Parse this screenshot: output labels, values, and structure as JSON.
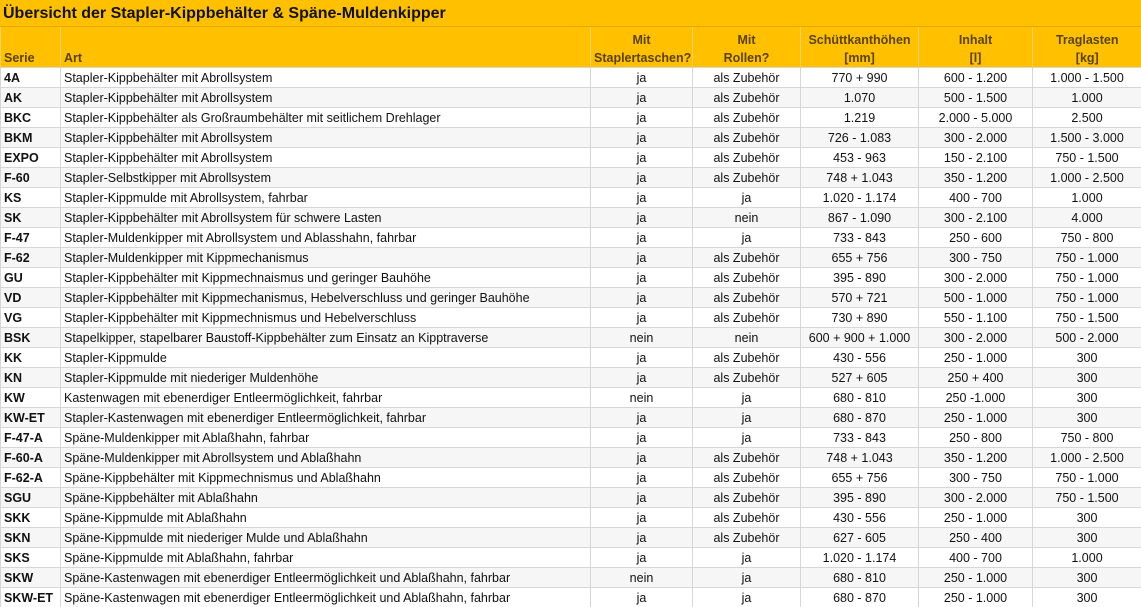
{
  "title": "Übersicht der Stapler-Kippbehälter & Späne-Muldenkipper",
  "table": {
    "header": [
      [
        "Serie"
      ],
      [
        "Art"
      ],
      [
        "Mit",
        "Staplertaschen?"
      ],
      [
        "Mit",
        "Rollen?"
      ],
      [
        "Schüttkanthöhen",
        "[mm]"
      ],
      [
        "Inhalt",
        "[l]"
      ],
      [
        "Traglasten",
        "[kg]"
      ]
    ],
    "rows": [
      [
        "4A",
        "Stapler-Kippbehälter mit Abrollsystem",
        "ja",
        "als Zubehör",
        "770 + 990",
        "600 - 1.200",
        "1.000 - 1.500"
      ],
      [
        "AK",
        "Stapler-Kippbehälter mit Abrollsystem",
        "ja",
        "als Zubehör",
        "1.070",
        "500 - 1.500",
        "1.000"
      ],
      [
        "BKC",
        "Stapler-Kippbehälter als Großraumbehälter mit seitlichem Drehlager",
        "ja",
        "als Zubehör",
        "1.219",
        "2.000 - 5.000",
        "2.500"
      ],
      [
        "BKM",
        "Stapler-Kippbehälter mit Abrollsystem",
        "ja",
        "als Zubehör",
        "726 - 1.083",
        "300 - 2.000",
        "1.500 - 3.000"
      ],
      [
        "EXPO",
        "Stapler-Kippbehälter mit Abrollsystem",
        "ja",
        "als Zubehör",
        "453 - 963",
        "150 - 2.100",
        "750 - 1.500"
      ],
      [
        "F-60",
        "Stapler-Selbstkipper mit Abrollsystem",
        "ja",
        "als Zubehör",
        "748 + 1.043",
        "350 - 1.200",
        "1.000 - 2.500"
      ],
      [
        "KS",
        "Stapler-Kippmulde mit Abrollsystem, fahrbar",
        "ja",
        "ja",
        "1.020 - 1.174",
        "400 - 700",
        "1.000"
      ],
      [
        "SK",
        "Stapler-Kippbehälter mit Abrollsystem für schwere Lasten",
        "ja",
        "nein",
        "867 - 1.090",
        "300 - 2.100",
        "4.000"
      ],
      [
        "F-47",
        "Stapler-Muldenkipper mit Abrollsystem und Ablasshahn, fahrbar",
        "ja",
        "ja",
        "733 - 843",
        "250 - 600",
        "750 - 800"
      ],
      [
        "F-62",
        "Stapler-Muldenkipper mit Kippmechanismus",
        "ja",
        "als Zubehör",
        "655 + 756",
        "300 - 750",
        "750 - 1.000"
      ],
      [
        "GU",
        "Stapler-Kippbehälter mit Kippmechnaismus und geringer Bauhöhe",
        "ja",
        "als Zubehör",
        "395 - 890",
        "300 - 2.000",
        "750 - 1.000"
      ],
      [
        "VD",
        "Stapler-Kippbehälter mit Kippmechanismus, Hebelverschluss und geringer Bauhöhe",
        "ja",
        "als Zubehör",
        "570 + 721",
        "500 - 1.000",
        "750 - 1.000"
      ],
      [
        "VG",
        "Stapler-Kippbehälter mit Kippmechnismus und Hebelverschluss",
        "ja",
        "als Zubehör",
        "730 + 890",
        "550 - 1.100",
        "750 - 1.500"
      ],
      [
        "BSK",
        "Stapelkipper, stapelbarer Baustoff-Kippbehälter zum Einsatz an Kipptraverse",
        "nein",
        "nein",
        "600 + 900 + 1.000",
        "300 - 2.000",
        "500 - 2.000"
      ],
      [
        "KK",
        "Stapler-Kippmulde",
        "ja",
        "als Zubehör",
        "430 - 556",
        "250 - 1.000",
        "300"
      ],
      [
        "KN",
        "Stapler-Kippmulde mit niederiger Muldenhöhe",
        "ja",
        "als Zubehör",
        "527 + 605",
        "250 + 400",
        "300"
      ],
      [
        "KW",
        "Kastenwagen mit ebenerdiger Entleermöglichkeit, fahrbar",
        "nein",
        "ja",
        "680 - 810",
        "250 -1.000",
        "300"
      ],
      [
        "KW-ET",
        "Stapler-Kastenwagen mit ebenerdiger Entleermöglichkeit, fahrbar",
        "ja",
        "ja",
        "680 - 870",
        "250 - 1.000",
        "300"
      ],
      [
        "F-47-A",
        "Späne-Muldenkipper mit Ablaßhahn, fahrbar",
        "ja",
        "ja",
        "733 - 843",
        "250 - 800",
        "750 - 800"
      ],
      [
        "F-60-A",
        "Späne-Muldenkipper mit Abrollsystem und Ablaßhahn",
        "ja",
        "als Zubehör",
        "748 + 1.043",
        "350 - 1.200",
        "1.000 - 2.500"
      ],
      [
        "F-62-A",
        "Späne-Kippbehälter mit Kippmechnismus und Ablaßhahn",
        "ja",
        "als Zubehör",
        "655 + 756",
        "300 - 750",
        "750 - 1.000"
      ],
      [
        "SGU",
        "Späne-Kippbehälter mit Ablaßhahn",
        "ja",
        "als Zubehör",
        "395 - 890",
        "300 - 2.000",
        "750 - 1.500"
      ],
      [
        "SKK",
        "Späne-Kippmulde mit Ablaßhahn",
        "ja",
        "als Zubehör",
        "430 - 556",
        "250 - 1.000",
        "300"
      ],
      [
        "SKN",
        "Späne-Kippmulde mit niederiger Mulde und Ablaßhahn",
        "ja",
        "als Zubehör",
        "627 - 605",
        "250 - 400",
        "300"
      ],
      [
        "SKS",
        "Späne-Kippmulde mit Ablaßhahn, fahrbar",
        "ja",
        "ja",
        "1.020 - 1.174",
        "400 - 700",
        "1.000"
      ],
      [
        "SKW",
        "Späne-Kastenwagen mit ebenerdiger Entleermöglichkeit und Ablaßhahn, fahrbar",
        "nein",
        "ja",
        "680 - 810",
        "250 - 1.000",
        "300"
      ],
      [
        "SKW-ET",
        "Späne-Kastenwagen mit ebenerdiger Entleermöglichkeit und Ablaßhahn, fahrbar",
        "ja",
        "ja",
        "680 - 870",
        "250 - 1.000",
        "300"
      ]
    ]
  }
}
